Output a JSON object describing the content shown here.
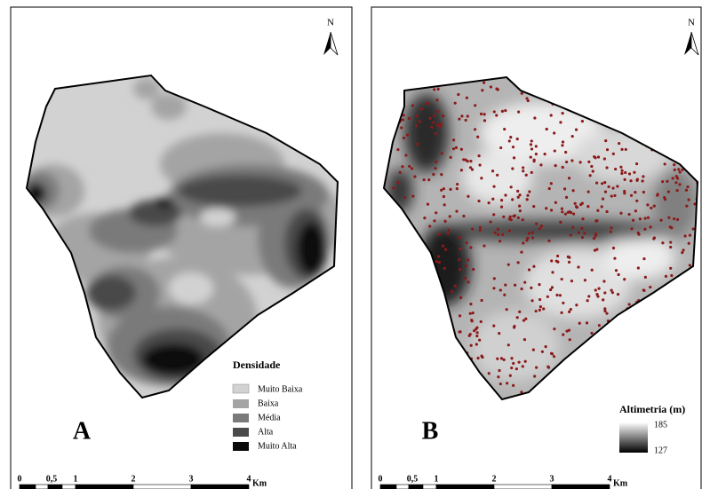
{
  "panels": [
    {
      "label": "A",
      "north": "N",
      "legend": {
        "title": "Densidade",
        "items": [
          "Muito Baixa",
          "Baixa",
          "Média",
          "Alta",
          "Muito Alta"
        ]
      },
      "scale": {
        "ticks": [
          "0",
          "0,5",
          "1",
          "2",
          "3",
          "4"
        ],
        "unit": "Km"
      }
    },
    {
      "label": "B",
      "north": "N",
      "legend": {
        "title": "Altimetria (m)",
        "max": 185,
        "min": 127
      },
      "scale": {
        "ticks": [
          "0",
          "0,5",
          "1",
          "2",
          "3",
          "4"
        ],
        "unit": "Km"
      }
    }
  ]
}
